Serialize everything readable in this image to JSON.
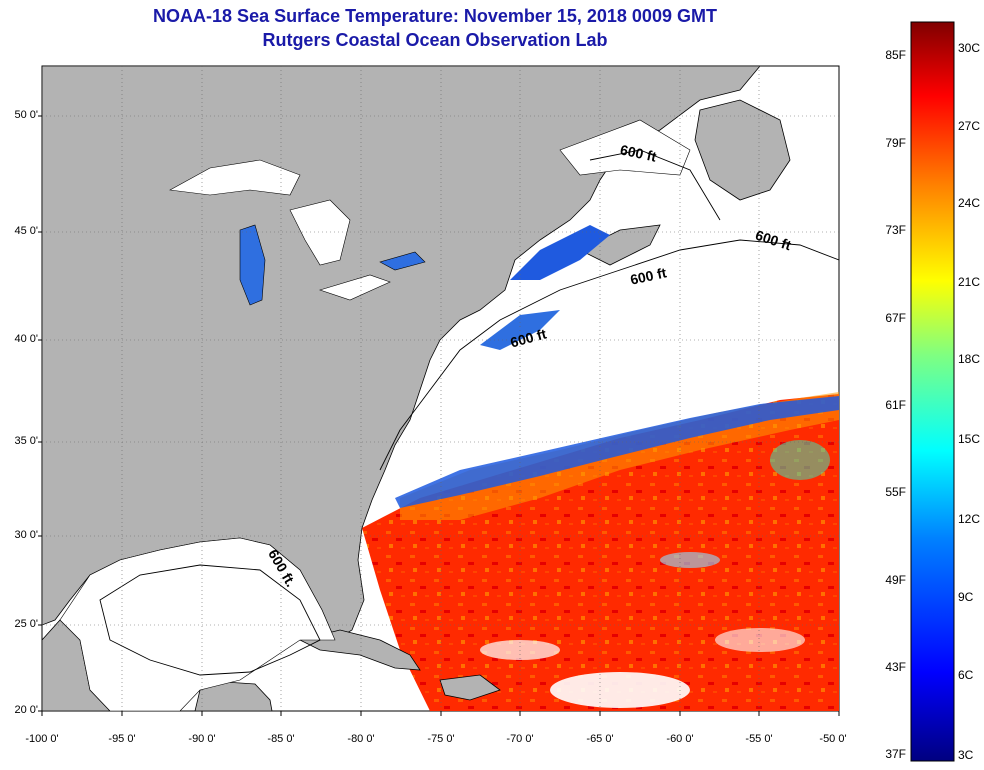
{
  "title": "NOAA-18 Sea Surface Temperature:  November 15, 2018 0009 GMT",
  "subtitle": "Rutgers Coastal Ocean Observation Lab",
  "lat_labels": [
    "50 0'",
    "45 0'",
    "40 0'",
    "35 0'",
    "30 0'",
    "25 0'",
    "20 0'"
  ],
  "lon_labels": [
    "-100 0'",
    "-95 0'",
    "-90 0'",
    "-85 0'",
    "-80 0'",
    "-75 0'",
    "-70 0'",
    "-65 0'",
    "-60 0'",
    "-55 0'",
    "-50 0'"
  ],
  "colorbar": {
    "fahrenheit_labels": [
      "85F",
      "79F",
      "73F",
      "67F",
      "61F",
      "55F",
      "49F",
      "43F",
      "37F"
    ],
    "celsius_labels": [
      "30C",
      "27C",
      "24C",
      "21C",
      "18C",
      "15C",
      "12C",
      "9C",
      "6C",
      "3C"
    ],
    "colors": [
      "#000080",
      "#0000ff",
      "#0080ff",
      "#00ffff",
      "#80ff80",
      "#ffff00",
      "#ff8000",
      "#ff0000",
      "#800000"
    ]
  },
  "depth_labels": [
    "600 ft",
    "600 ft",
    "600 ft",
    "600 ft",
    "600 ft."
  ],
  "colors": {
    "land": "#b3b3b3",
    "water_no_data": "#ffffff",
    "title": "#1a1aa8",
    "warm": "#ff3000",
    "cold": "#1f5adf"
  }
}
